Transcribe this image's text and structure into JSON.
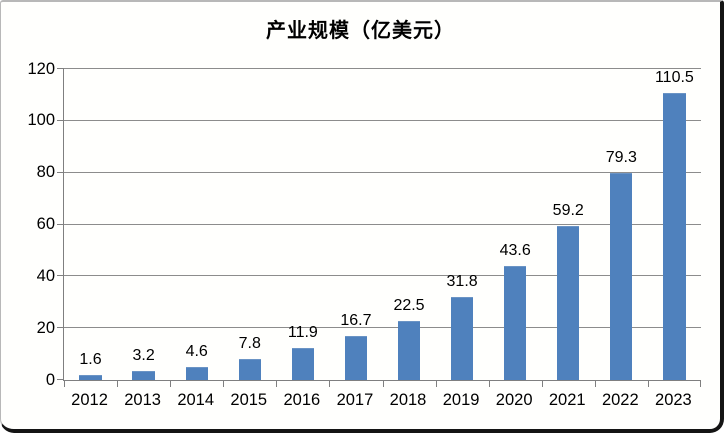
{
  "chart_data": {
    "type": "bar",
    "title": "产业规模（亿美元）",
    "categories": [
      "2012",
      "2013",
      "2014",
      "2015",
      "2016",
      "2017",
      "2018",
      "2019",
      "2020",
      "2021",
      "2022",
      "2023"
    ],
    "values": [
      1.6,
      3.2,
      4.6,
      7.8,
      11.9,
      16.7,
      22.5,
      31.8,
      43.6,
      59.2,
      79.3,
      110.5
    ],
    "data_labels": [
      "1.6",
      "3.2",
      "4.6",
      "7.8",
      "11.9",
      "16.7",
      "22.5",
      "31.8",
      "43.6",
      "59.2",
      "79.3",
      "110.5"
    ],
    "xlabel": "",
    "ylabel": "",
    "ylim": [
      0,
      120
    ],
    "yticks": [
      0,
      20,
      40,
      60,
      80,
      100,
      120
    ],
    "grid": true,
    "legend_position": "none",
    "colors": {
      "bar": "#4F81BD",
      "bar_edge": "#6b94c5",
      "gridline": "#8c8c8c",
      "axis": "#7f7f7f",
      "text": "#000000",
      "background": "#fffffd"
    }
  }
}
